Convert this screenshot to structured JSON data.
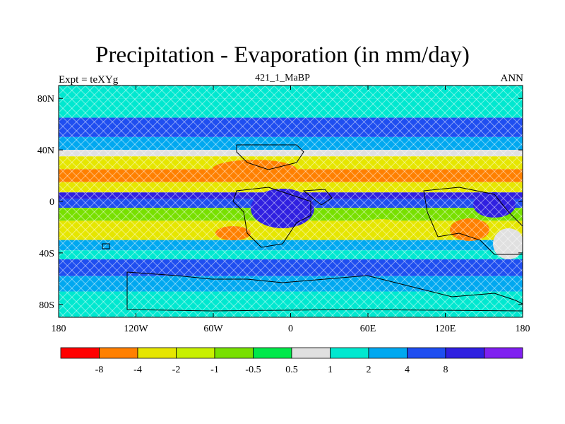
{
  "title": "Precipitation - Evaporation (in mm/day)",
  "subtitle_left": "Expt = teXYg",
  "subtitle_center": "421_1_MaBP",
  "subtitle_right": "ANN",
  "chart_data": {
    "type": "heatmap",
    "title": "Precipitation - Evaporation (in mm/day)",
    "xlim": [
      -180,
      180
    ],
    "ylim": [
      -90,
      90
    ],
    "x_ticks": [
      {
        "value": -180,
        "label": "180"
      },
      {
        "value": -120,
        "label": "120W"
      },
      {
        "value": -60,
        "label": "60W"
      },
      {
        "value": 0,
        "label": "0"
      },
      {
        "value": 60,
        "label": "60E"
      },
      {
        "value": 120,
        "label": "120E"
      },
      {
        "value": 180,
        "label": "180"
      }
    ],
    "y_ticks": [
      {
        "value": 80,
        "label": "80N"
      },
      {
        "value": 40,
        "label": "40N"
      },
      {
        "value": 0,
        "label": "0"
      },
      {
        "value": -40,
        "label": "40S"
      },
      {
        "value": -80,
        "label": "80S"
      }
    ],
    "zonal_bands": [
      {
        "lat": [
          80,
          90
        ],
        "color": "#00e8d0"
      },
      {
        "lat": [
          65,
          80
        ],
        "color": "#00e8d0"
      },
      {
        "lat": [
          50,
          65
        ],
        "color": "#1f4ef0"
      },
      {
        "lat": [
          40,
          50
        ],
        "color": "#00a8f0"
      },
      {
        "lat": [
          35,
          40
        ],
        "color": "#e0e0e0"
      },
      {
        "lat": [
          25,
          35
        ],
        "color": "#e6e600"
      },
      {
        "lat": [
          15,
          25
        ],
        "color": "#ff8000"
      },
      {
        "lat": [
          7,
          15
        ],
        "color": "#e6e600"
      },
      {
        "lat": [
          2,
          7
        ],
        "color": "#3020e0"
      },
      {
        "lat": [
          -5,
          2
        ],
        "color": "#1f4ef0"
      },
      {
        "lat": [
          -15,
          -5
        ],
        "color": "#78e000"
      },
      {
        "lat": [
          -30,
          -15
        ],
        "color": "#e6e600"
      },
      {
        "lat": [
          -38,
          -30
        ],
        "color": "#00a8f0"
      },
      {
        "lat": [
          -45,
          -38
        ],
        "color": "#00e8d0"
      },
      {
        "lat": [
          -58,
          -45
        ],
        "color": "#1f4ef0"
      },
      {
        "lat": [
          -70,
          -58
        ],
        "color": "#00a8f0"
      },
      {
        "lat": [
          -90,
          -70
        ],
        "color": "#00e8d0"
      }
    ],
    "colorbar": {
      "colors": [
        "#ff0000",
        "#ff8000",
        "#e6e600",
        "#c8f000",
        "#78e000",
        "#00e84a",
        "#e0e0e0",
        "#00e8d0",
        "#00a8f0",
        "#1f4ef0",
        "#3020e0",
        "#8020f0"
      ],
      "labels": [
        "-8",
        "-4",
        "-2",
        "-1",
        "-0.5",
        "0.5",
        "1",
        "2",
        "4",
        "8"
      ]
    }
  }
}
